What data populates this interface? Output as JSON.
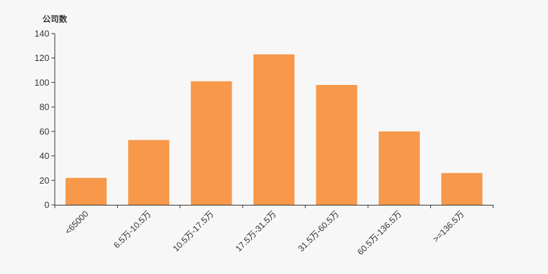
{
  "chart_data": {
    "type": "bar",
    "title": "",
    "xlabel": "",
    "ylabel": "公司数",
    "categories": [
      "<65000",
      "6.5万-10.5万",
      "10.5万-17.5万",
      "17.5万-31.5万",
      "31.5万-60.5万",
      "60.5万-136.5万",
      ">=136.5万"
    ],
    "values": [
      22,
      53,
      101,
      123,
      98,
      60,
      26
    ],
    "ylim": [
      0,
      140
    ],
    "yticks": [
      0,
      20,
      40,
      60,
      80,
      100,
      120,
      140
    ],
    "grid": false,
    "colors": {
      "bar": "#f7984a",
      "axis": "#333333"
    }
  }
}
